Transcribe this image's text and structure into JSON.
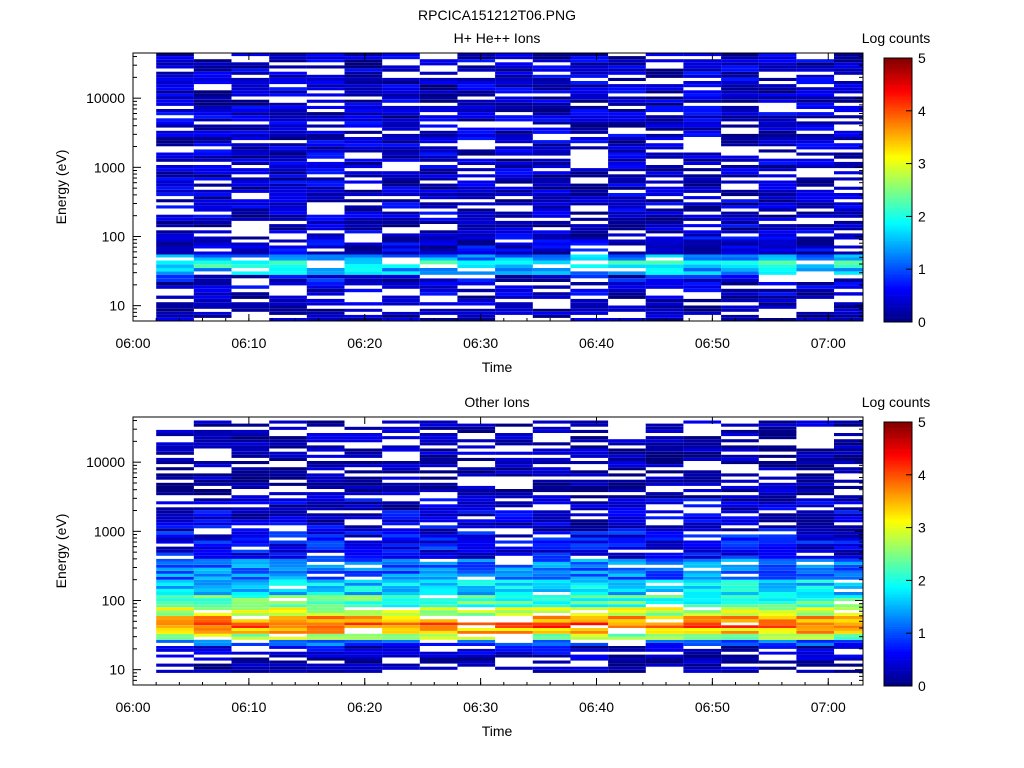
{
  "figure_title": "RPCICA151212T06.PNG",
  "colors": {
    "scale": [
      "#00007f",
      "#0000ff",
      "#0080ff",
      "#00ffff",
      "#80ff80",
      "#ffff00",
      "#ff8000",
      "#ff0000",
      "#7f0000"
    ]
  },
  "chart_data": [
    {
      "type": "heatmap",
      "title": "H+ He++ Ions",
      "xlabel": "Time",
      "ylabel": "Energy (eV)",
      "yscale": "log",
      "xlim": [
        "06:00",
        "07:03"
      ],
      "ylim": [
        6,
        45000
      ],
      "xticks": [
        "06:00",
        "06:10",
        "06:20",
        "06:30",
        "06:40",
        "06:50",
        "07:00"
      ],
      "yticks": [
        "10",
        "100",
        "1000",
        "10000"
      ],
      "colorbar": {
        "label": "Log counts",
        "range": [
          0,
          5
        ],
        "ticks": [
          "0",
          "1",
          "2",
          "3",
          "4",
          "5"
        ]
      },
      "time_bins": [
        "06:02:00",
        "06:05:15",
        "06:08:30",
        "06:11:45",
        "06:15:00",
        "06:18:15",
        "06:21:30",
        "06:24:45",
        "06:28:00",
        "06:31:15",
        "06:34:30",
        "06:37:45",
        "06:41:00",
        "06:44:15",
        "06:47:30",
        "06:50:45",
        "06:54:00",
        "06:57:15",
        "07:00:30",
        "07:03:00"
      ],
      "profile": {
        "description_levels": "log counts per energy band for a typical time bin",
        "bands": [
          {
            "e_min": 6,
            "e_max": 9,
            "level": 0.2
          },
          {
            "e_min": 9,
            "e_max": 14,
            "level": 0.2
          },
          {
            "e_min": 14,
            "e_max": 22,
            "level": 0.3
          },
          {
            "e_min": 22,
            "e_max": 28,
            "level": 0.5
          },
          {
            "e_min": 28,
            "e_max": 35,
            "level": 1.5
          },
          {
            "e_min": 35,
            "e_max": 45,
            "level": 1.9
          },
          {
            "e_min": 45,
            "e_max": 55,
            "level": 1.4
          },
          {
            "e_min": 55,
            "e_max": 100,
            "level": 0.4
          },
          {
            "e_min": 100,
            "e_max": 45000,
            "level": 0.3
          }
        ]
      }
    },
    {
      "type": "heatmap",
      "title": "Other Ions",
      "xlabel": "Time",
      "ylabel": "Energy (eV)",
      "yscale": "log",
      "xlim": [
        "06:00",
        "07:03"
      ],
      "ylim": [
        6,
        45000
      ],
      "xticks": [
        "06:00",
        "06:10",
        "06:20",
        "06:30",
        "06:40",
        "06:50",
        "07:00"
      ],
      "yticks": [
        "10",
        "100",
        "1000",
        "10000"
      ],
      "colorbar": {
        "label": "Log counts",
        "range": [
          0,
          5
        ],
        "ticks": [
          "0",
          "1",
          "2",
          "3",
          "4",
          "5"
        ]
      },
      "time_bins": [
        "06:02:00",
        "06:05:15",
        "06:08:30",
        "06:11:45",
        "06:15:00",
        "06:18:15",
        "06:21:30",
        "06:24:45",
        "06:28:00",
        "06:31:15",
        "06:34:30",
        "06:37:45",
        "06:41:00",
        "06:44:15",
        "06:47:30",
        "06:50:45",
        "06:54:00",
        "06:57:15",
        "07:00:30",
        "07:03:00"
      ],
      "profile": {
        "description_levels": "log counts per energy band for a typical time bin",
        "bands": [
          {
            "e_min": 9,
            "e_max": 15,
            "level": 0.1
          },
          {
            "e_min": 15,
            "e_max": 22,
            "level": 0.3
          },
          {
            "e_min": 22,
            "e_max": 27,
            "level": 1.0
          },
          {
            "e_min": 27,
            "e_max": 33,
            "level": 2.6
          },
          {
            "e_min": 33,
            "e_max": 40,
            "level": 3.4
          },
          {
            "e_min": 40,
            "e_max": 48,
            "level": 3.9
          },
          {
            "e_min": 48,
            "e_max": 60,
            "level": 3.6
          },
          {
            "e_min": 60,
            "e_max": 80,
            "level": 2.8
          },
          {
            "e_min": 80,
            "e_max": 120,
            "level": 2.2
          },
          {
            "e_min": 120,
            "e_max": 200,
            "level": 1.7
          },
          {
            "e_min": 200,
            "e_max": 400,
            "level": 1.2
          },
          {
            "e_min": 400,
            "e_max": 1000,
            "level": 0.6
          },
          {
            "e_min": 1000,
            "e_max": 3000,
            "level": 0.4
          },
          {
            "e_min": 3000,
            "e_max": 40000,
            "level": 0.1
          }
        ]
      }
    }
  ]
}
